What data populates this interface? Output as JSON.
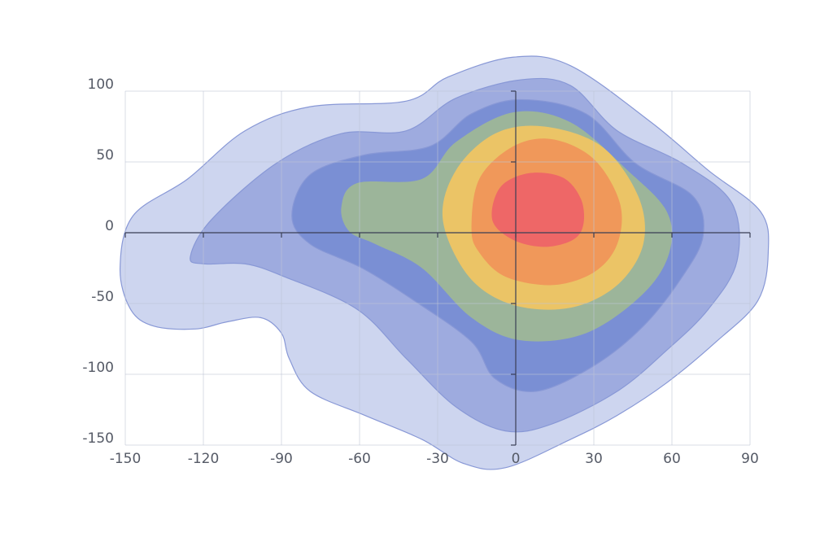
{
  "chart_data": {
    "type": "contour",
    "xlim": [
      -150,
      90
    ],
    "ylim": [
      -150,
      100
    ],
    "xticks": [
      -150,
      -120,
      -90,
      -60,
      -30,
      0,
      30,
      60,
      90
    ],
    "yticks": [
      -150,
      -100,
      -50,
      0,
      50,
      100
    ],
    "grid": true,
    "series": [
      {
        "color": "#cdd5ef",
        "x": [
          -152,
          -147,
          -126,
          -104,
          -79,
          -42,
          -26,
          -1,
          21,
          52,
          74,
          94,
          97,
          93,
          77,
          58,
          39,
          21,
          -4,
          -20,
          -36,
          -58,
          -79,
          -87,
          -90,
          -98,
          -111,
          -123,
          -139,
          -148
        ],
        "y": [
          -25,
          12,
          38,
          72,
          89,
          93,
          110,
          124,
          118,
          78,
          44,
          15,
          -14,
          -48,
          -77,
          -106,
          -129,
          -146,
          -166,
          -163,
          -146,
          -129,
          -112,
          -89,
          -71,
          -60,
          -63,
          -68,
          -66,
          -54
        ]
      },
      {
        "color": "#9eabdf",
        "x": [
          -125,
          -117,
          -92,
          -67,
          -42,
          -23,
          2,
          21,
          39,
          64,
          83,
          85,
          74,
          58,
          39,
          14,
          -4,
          -23,
          -42,
          -61,
          -89,
          -104,
          -120
        ],
        "y": [
          -17,
          9,
          49,
          70,
          72,
          95,
          108,
          104,
          72,
          49,
          21,
          -20,
          -54,
          -83,
          -112,
          -135,
          -140,
          -123,
          -89,
          -54,
          -31,
          -22,
          -22
        ]
      },
      {
        "color": "#7a8fd4",
        "x": [
          -86,
          -79,
          -58,
          -33,
          -17,
          2,
          27,
          46,
          68,
          72,
          64,
          49,
          30,
          8,
          -8,
          -17,
          -39,
          -59,
          -79
        ],
        "y": [
          12,
          41,
          55,
          61,
          84,
          94,
          84,
          49,
          26,
          -2,
          -31,
          -66,
          -94,
          -112,
          -103,
          -77,
          -48,
          -25,
          -8
        ]
      },
      {
        "color": "#9cb59a",
        "x": [
          -67,
          -61,
          -36,
          -23,
          -1,
          21,
          43,
          58,
          59,
          49,
          27,
          2,
          -17,
          -36,
          -54,
          -64
        ],
        "y": [
          18,
          35,
          38,
          64,
          85,
          78,
          44,
          15,
          -14,
          -43,
          -71,
          -76,
          -60,
          -25,
          -8,
          1
        ]
      },
      {
        "color": "#ebc466",
        "x": [
          -28,
          -23,
          -8,
          11,
          33,
          47,
          49,
          39,
          21,
          -1,
          -18
        ],
        "y": [
          9,
          44,
          70,
          75,
          61,
          26,
          -8,
          -37,
          -53,
          -51,
          -31
        ]
      },
      {
        "color": "#f0985a",
        "x": [
          -17,
          -14,
          -1,
          14,
          30,
          40,
          39,
          30,
          14,
          -4,
          -14
        ],
        "y": [
          3,
          38,
          61,
          66,
          52,
          21,
          -8,
          -28,
          -37,
          -31,
          -14
        ]
      },
      {
        "color": "#ee6767",
        "x": [
          -9,
          -6,
          5,
          18,
          25,
          26,
          22,
          11,
          -1
        ],
        "y": [
          9,
          32,
          42,
          39,
          24,
          6,
          -5,
          -10,
          -5
        ]
      }
    ]
  }
}
